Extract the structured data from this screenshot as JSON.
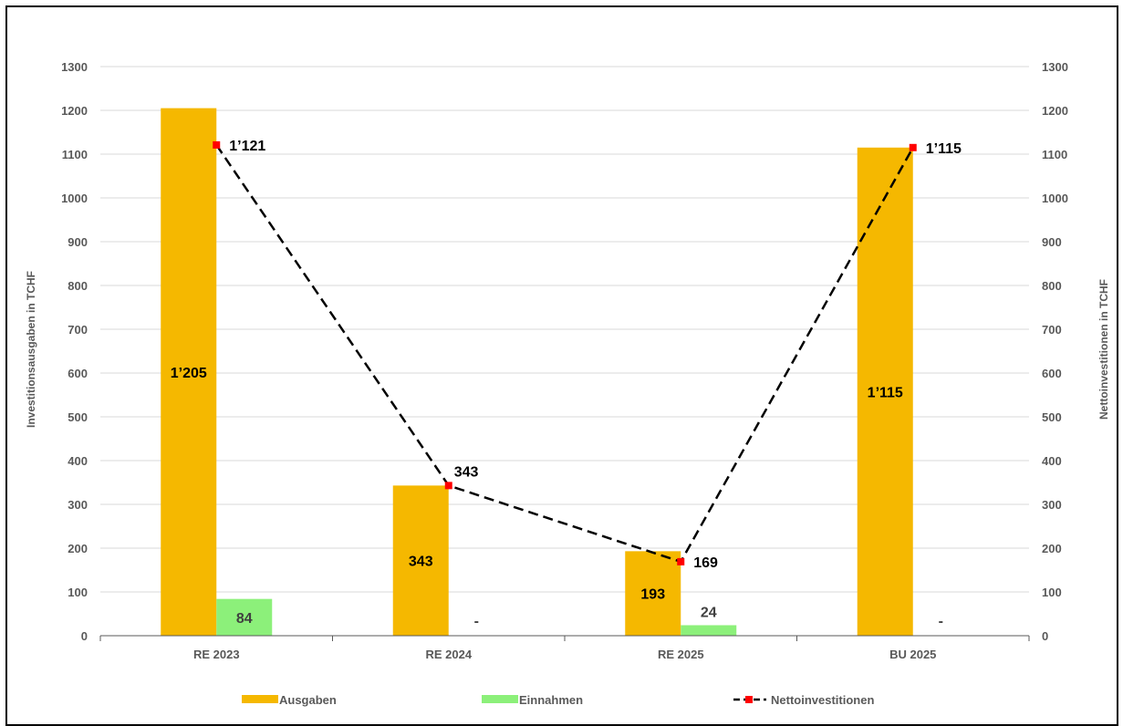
{
  "chart_data": {
    "type": "bar",
    "categories": [
      "RE 2023",
      "RE 2024",
      "RE 2025",
      "BU 2025"
    ],
    "ylabel_left": "Investitionsausgaben in TCHF",
    "ylabel_right": "Nettoinvestitionen in TCHF",
    "ylim": [
      0,
      1300
    ],
    "yticks": [
      0,
      100,
      200,
      300,
      400,
      500,
      600,
      700,
      800,
      900,
      1000,
      1100,
      1200,
      1300
    ],
    "grid": true,
    "legend_position": "bottom",
    "series": [
      {
        "name": "Ausgaben",
        "type": "bar",
        "color": "#F5B800",
        "values": [
          1205,
          343,
          193,
          1115
        ],
        "labels": [
          "1’205",
          "343",
          "193",
          "1’115"
        ]
      },
      {
        "name": "Einnahmen",
        "type": "bar",
        "color": "#8CF07A",
        "values": [
          84,
          0,
          24,
          0
        ],
        "labels": [
          "84",
          "-",
          "24",
          "-"
        ]
      },
      {
        "name": "Nettoinvestitionen",
        "type": "line",
        "color": "#000000",
        "marker_color": "#FF0000",
        "line_style": "dashed",
        "values": [
          1121,
          343,
          169,
          1115
        ],
        "labels": [
          "1’121",
          "343",
          "169",
          "1’115"
        ]
      }
    ]
  }
}
